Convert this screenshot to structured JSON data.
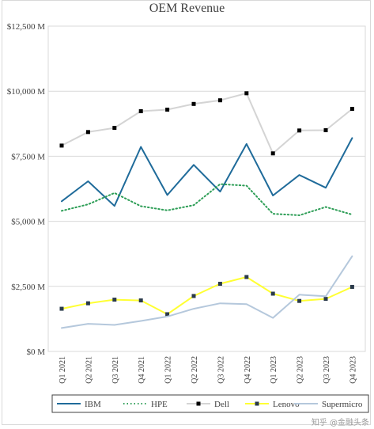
{
  "chart_data": {
    "type": "line",
    "title": "OEM Revenue",
    "xlabel": "",
    "ylabel": "",
    "categories": [
      "Q1 2021",
      "Q2 2021",
      "Q3 2021",
      "Q4 2021",
      "Q1 2022",
      "Q2 2022",
      "Q3 2022",
      "Q4 2022",
      "Q1 2023",
      "Q2 2023",
      "Q3 2023",
      "Q4 2023"
    ],
    "ylim": [
      0,
      12500
    ],
    "yticks": [
      {
        "value": 0,
        "label": "$0 M"
      },
      {
        "value": 2500,
        "label": "$2,500 M"
      },
      {
        "value": 5000,
        "label": "$5,000 M"
      },
      {
        "value": 7500,
        "label": "$7,500 M"
      },
      {
        "value": 10000,
        "label": "$10,000 M"
      },
      {
        "value": 12500,
        "label": "$12,500 M"
      }
    ],
    "grid": true,
    "legend_position": "bottom",
    "series": [
      {
        "name": "IBM",
        "color": "#1f6b9a",
        "style": "solid",
        "marker": "none",
        "values": [
          5770,
          6540,
          5590,
          7860,
          6010,
          7170,
          6140,
          7970,
          5990,
          6780,
          6290,
          8200
        ]
      },
      {
        "name": "HPE",
        "color": "#2e9e57",
        "style": "dotted",
        "marker": "none",
        "values": [
          5400,
          5650,
          6090,
          5580,
          5420,
          5620,
          6430,
          6370,
          5290,
          5230,
          5550,
          5260
        ]
      },
      {
        "name": "Dell",
        "color": "#d4d4d4",
        "style": "solid",
        "marker": "square",
        "marker_color": "#000000",
        "values": [
          7910,
          8430,
          8590,
          9230,
          9290,
          9510,
          9650,
          9920,
          7610,
          8490,
          8500,
          9320
        ]
      },
      {
        "name": "Lenovo",
        "color": "#ffff33",
        "style": "solid",
        "marker": "square",
        "marker_color": "#2a3a4a",
        "values": [
          1640,
          1850,
          1990,
          1960,
          1430,
          2130,
          2600,
          2860,
          2220,
          1940,
          2020,
          2480
        ]
      },
      {
        "name": "Supermicro",
        "color": "#b5c8dc",
        "style": "solid",
        "marker": "none",
        "values": [
          900,
          1060,
          1020,
          1170,
          1340,
          1640,
          1850,
          1820,
          1290,
          2180,
          2120,
          3660
        ]
      }
    ]
  },
  "watermark": "知乎 @金融头条"
}
